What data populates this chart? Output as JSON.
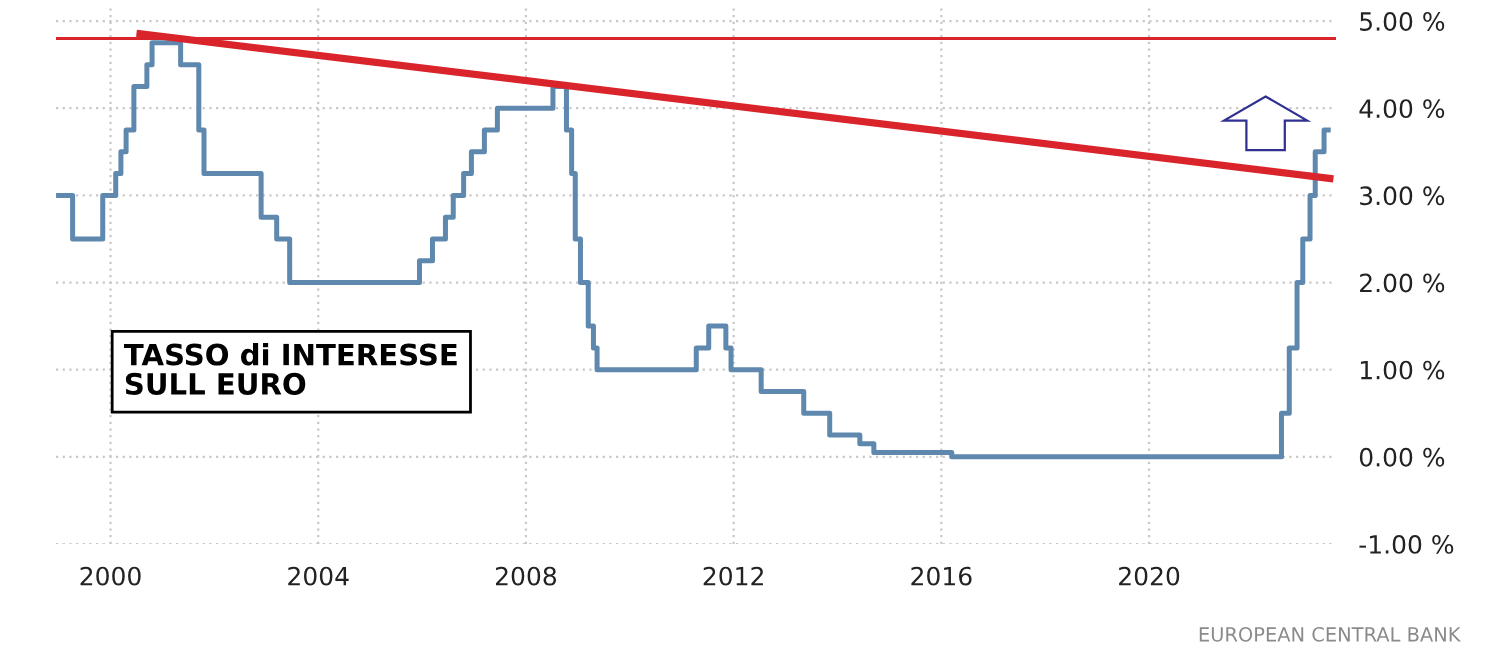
{
  "chart_data": {
    "type": "step",
    "xlim": [
      1998.95,
      2023.6
    ],
    "ylim": [
      -1.0,
      5.15
    ],
    "xticks": [
      2000,
      2004,
      2008,
      2012,
      2016,
      2020
    ],
    "yticks": [
      {
        "value": -1,
        "label": "-1.00 %"
      },
      {
        "value": 0,
        "label": "0.00 %"
      },
      {
        "value": 1,
        "label": "1.00 %"
      },
      {
        "value": 2,
        "label": "2.00 %"
      },
      {
        "value": 3,
        "label": "3.00 %"
      },
      {
        "value": 4,
        "label": "4.00 %"
      },
      {
        "value": 5,
        "label": "5.00 %"
      }
    ],
    "grid": true,
    "legend": false,
    "series": [
      {
        "color": "#5f88ae",
        "x": [
          1999.0,
          1999.27,
          1999.85,
          2000.1,
          2000.2,
          2000.3,
          2000.45,
          2000.7,
          2000.8,
          2001.35,
          2001.7,
          2001.8,
          2002.9,
          2003.2,
          2003.45,
          2005.95,
          2006.2,
          2006.45,
          2006.6,
          2006.8,
          2006.95,
          2007.2,
          2007.45,
          2008.52,
          2008.78,
          2008.88,
          2008.95,
          2009.05,
          2009.2,
          2009.3,
          2009.37,
          2011.28,
          2011.52,
          2011.85,
          2011.95,
          2012.53,
          2013.35,
          2013.85,
          2014.43,
          2014.7,
          2016.2,
          2022.55,
          2022.7,
          2022.85,
          2022.96,
          2023.1,
          2023.2,
          2023.37,
          2023.45
        ],
        "values": [
          3.0,
          2.5,
          3.0,
          3.25,
          3.5,
          3.75,
          4.25,
          4.5,
          4.75,
          4.5,
          3.75,
          3.25,
          2.75,
          2.5,
          2.0,
          2.25,
          2.5,
          2.75,
          3.0,
          3.25,
          3.5,
          3.75,
          4.0,
          4.25,
          3.75,
          3.25,
          2.5,
          2.0,
          1.5,
          1.25,
          1.0,
          1.25,
          1.5,
          1.25,
          1.0,
          0.75,
          0.5,
          0.25,
          0.15,
          0.05,
          0.0,
          0.5,
          1.25,
          2.0,
          2.5,
          3.0,
          3.5,
          3.75,
          3.75
        ]
      },
      {
        "type": "line",
        "color": "#d9242b",
        "x": [
          2000.5,
          2023.55
        ],
        "values": [
          4.86,
          3.19
        ]
      }
    ],
    "ref_lines": [
      {
        "axis": "y",
        "value": 4.8,
        "color": "#d9242b"
      }
    ],
    "annotations": [
      "TASSO di INTERESSE\nSULL EURO",
      "EUROPEAN CENTRAL BANK"
    ]
  }
}
